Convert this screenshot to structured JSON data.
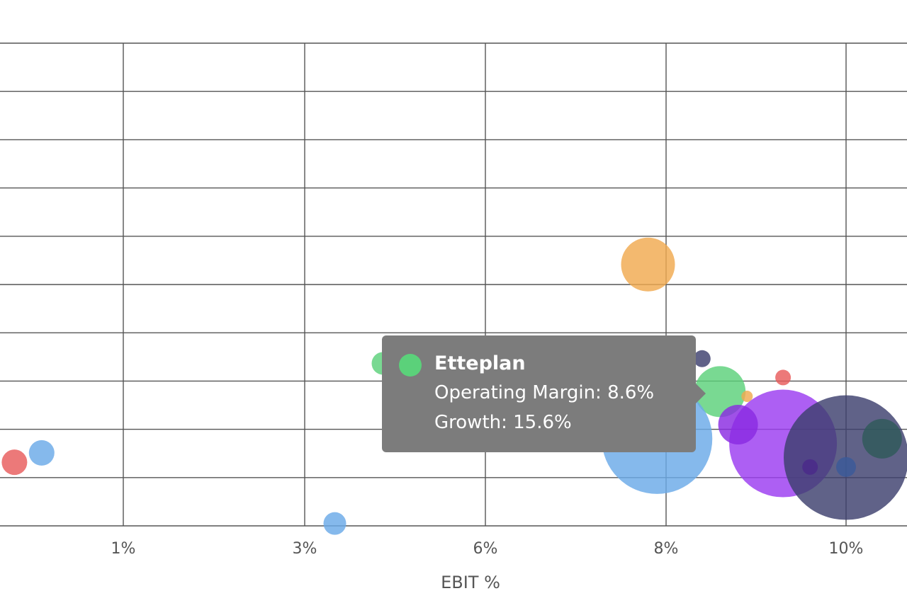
{
  "chart_data": {
    "type": "scatter",
    "title": "",
    "xlabel": "EBIT %",
    "ylabel": "",
    "x_ticks": [
      {
        "value": 1,
        "label": "1%"
      },
      {
        "value": 3,
        "label": "3%"
      },
      {
        "value": 6,
        "label": "6%"
      },
      {
        "value": 8,
        "label": "8%"
      },
      {
        "value": 10,
        "label": "10%"
      }
    ],
    "grid": true,
    "points": [
      {
        "x": -0.2,
        "y": 1.1,
        "size": 18,
        "color": "#e85b5b"
      },
      {
        "x": 0.1,
        "y": 1.3,
        "size": 18,
        "color": "#6aaae8"
      },
      {
        "x": 3.5,
        "y": -0.2,
        "size": 16,
        "color": "#6aaae8"
      },
      {
        "x": 7.8,
        "y": 5.3,
        "size": 38,
        "color": "#f0a94f"
      },
      {
        "x": 4.3,
        "y": 3.2,
        "size": 16,
        "color": "#5bd17a"
      },
      {
        "x": 8.4,
        "y": 3.3,
        "size": 12,
        "color": "#3d3f6e"
      },
      {
        "x": 8.6,
        "y": 2.6,
        "size": 36,
        "color": "#5bd17a"
      },
      {
        "x": 8.9,
        "y": 2.5,
        "size": 8,
        "color": "#f0a94f"
      },
      {
        "x": 9.3,
        "y": 2.9,
        "size": 11,
        "color": "#e85b5b"
      },
      {
        "x": 7.9,
        "y": 1.6,
        "size": 78,
        "color": "#6aaae8"
      },
      {
        "x": 7.8,
        "y": 1.8,
        "size": 24,
        "color": "#5a8fc4"
      },
      {
        "x": 9.3,
        "y": 1.5,
        "size": 76,
        "color": "#9b3cf0"
      },
      {
        "x": 8.8,
        "y": 1.9,
        "size": 28,
        "color": "#8a2be2"
      },
      {
        "x": 10.0,
        "y": 1.2,
        "size": 88,
        "color": "#3d3f6e"
      },
      {
        "x": 10.4,
        "y": 1.6,
        "size": 28,
        "color": "#2f5a5a"
      },
      {
        "x": 9.6,
        "y": 1.0,
        "size": 11,
        "color": "#4b2a8a"
      },
      {
        "x": 10.0,
        "y": 1.0,
        "size": 14,
        "color": "#3a5a9a"
      }
    ]
  },
  "tooltip": {
    "title": "Etteplan",
    "line1": "Operating Margin: 8.6%",
    "line2": "Growth: 15.6%",
    "dot_color": "#5bd17a"
  }
}
